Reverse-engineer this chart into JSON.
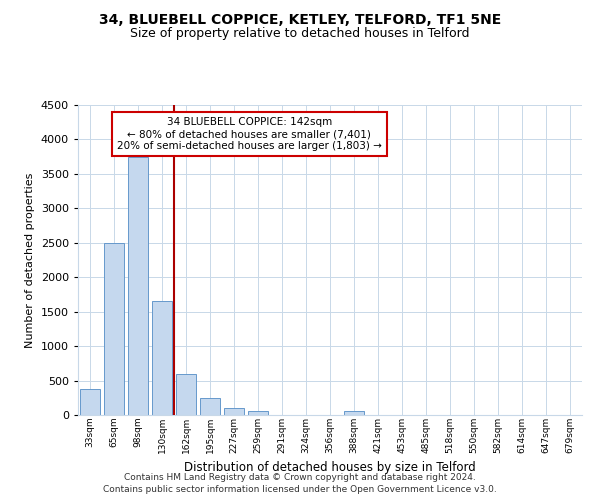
{
  "title1": "34, BLUEBELL COPPICE, KETLEY, TELFORD, TF1 5NE",
  "title2": "Size of property relative to detached houses in Telford",
  "xlabel": "Distribution of detached houses by size in Telford",
  "ylabel": "Number of detached properties",
  "categories": [
    "33sqm",
    "65sqm",
    "98sqm",
    "130sqm",
    "162sqm",
    "195sqm",
    "227sqm",
    "259sqm",
    "291sqm",
    "324sqm",
    "356sqm",
    "388sqm",
    "421sqm",
    "453sqm",
    "485sqm",
    "518sqm",
    "550sqm",
    "582sqm",
    "614sqm",
    "647sqm",
    "679sqm"
  ],
  "values": [
    375,
    2500,
    3750,
    1650,
    600,
    240,
    100,
    55,
    0,
    0,
    0,
    55,
    0,
    0,
    0,
    0,
    0,
    0,
    0,
    0,
    0
  ],
  "bar_color": "#c5d8ee",
  "bar_edge_color": "#6699cc",
  "vline_color": "#aa0000",
  "annotation_line1": "34 BLUEBELL COPPICE: 142sqm",
  "annotation_line2": "← 80% of detached houses are smaller (7,401)",
  "annotation_line3": "20% of semi-detached houses are larger (1,803) →",
  "annotation_box_color": "#ffffff",
  "annotation_box_edge": "#cc0000",
  "ylim": [
    0,
    4500
  ],
  "yticks": [
    0,
    500,
    1000,
    1500,
    2000,
    2500,
    3000,
    3500,
    4000,
    4500
  ],
  "footer1": "Contains HM Land Registry data © Crown copyright and database right 2024.",
  "footer2": "Contains public sector information licensed under the Open Government Licence v3.0.",
  "bg_color": "#ffffff",
  "grid_color": "#c8d8e8"
}
